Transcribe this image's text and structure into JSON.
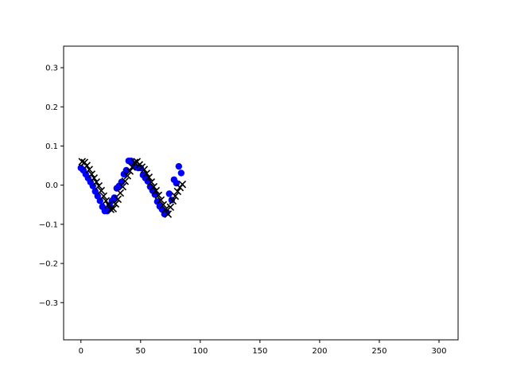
{
  "chart_data": {
    "type": "scatter",
    "title": "",
    "xlabel": "",
    "ylabel": "",
    "xlim": [
      -14.5,
      316
    ],
    "ylim": [
      -0.395,
      0.355
    ],
    "xticks": [
      0,
      50,
      100,
      150,
      200,
      250,
      300
    ],
    "yticks": [
      -0.3,
      -0.2,
      -0.1,
      0.0,
      0.1,
      0.2,
      0.3
    ],
    "xtick_labels": [
      "0",
      "50",
      "100",
      "150",
      "200",
      "250",
      "300"
    ],
    "ytick_labels": [
      "−0.3",
      "−0.2",
      "−0.1",
      "0.0",
      "0.1",
      "0.2",
      "0.3"
    ],
    "grid": false,
    "series": [
      {
        "marker": "circle",
        "color": "#0000ff",
        "x": [
          0,
          2,
          4,
          6,
          8,
          10,
          12,
          14,
          16,
          18,
          20,
          22,
          24,
          26,
          28,
          30,
          32,
          34,
          36,
          38,
          40,
          42,
          44,
          46,
          48,
          50,
          52,
          54,
          56,
          58,
          60,
          62,
          64,
          66,
          68,
          70,
          72,
          74,
          76,
          78,
          80,
          82,
          84
        ],
        "y": [
          0.044,
          0.038,
          0.028,
          0.018,
          0.008,
          -0.002,
          -0.016,
          -0.028,
          -0.04,
          -0.055,
          -0.066,
          -0.066,
          -0.052,
          -0.04,
          -0.032,
          -0.008,
          -0.002,
          0.008,
          0.028,
          0.038,
          0.062,
          0.062,
          0.054,
          0.046,
          0.044,
          0.044,
          0.026,
          0.018,
          0.01,
          -0.004,
          -0.014,
          -0.024,
          -0.042,
          -0.054,
          -0.062,
          -0.074,
          -0.07,
          -0.022,
          -0.038,
          0.014,
          0.005,
          0.048,
          0.031
        ]
      },
      {
        "marker": "x",
        "color": "#000000",
        "x": [
          1,
          3,
          5,
          7,
          9,
          11,
          13,
          15,
          17,
          19,
          21,
          23,
          25,
          27,
          29,
          31,
          33,
          35,
          37,
          39,
          41,
          43,
          45,
          47,
          49,
          51,
          53,
          55,
          57,
          59,
          61,
          63,
          65,
          67,
          69,
          71,
          73,
          75,
          77,
          79,
          81,
          83,
          85
        ],
        "y": [
          0.06,
          0.058,
          0.05,
          0.04,
          0.028,
          0.018,
          0.008,
          -0.002,
          -0.014,
          -0.028,
          -0.04,
          -0.05,
          -0.062,
          -0.06,
          -0.048,
          -0.036,
          -0.02,
          -0.004,
          0.01,
          0.024,
          0.036,
          0.046,
          0.058,
          0.06,
          0.052,
          0.046,
          0.04,
          0.03,
          0.02,
          0.008,
          -0.004,
          -0.014,
          -0.026,
          -0.038,
          -0.05,
          -0.062,
          -0.074,
          -0.056,
          -0.04,
          -0.028,
          -0.016,
          -0.006,
          0.002
        ]
      }
    ]
  }
}
